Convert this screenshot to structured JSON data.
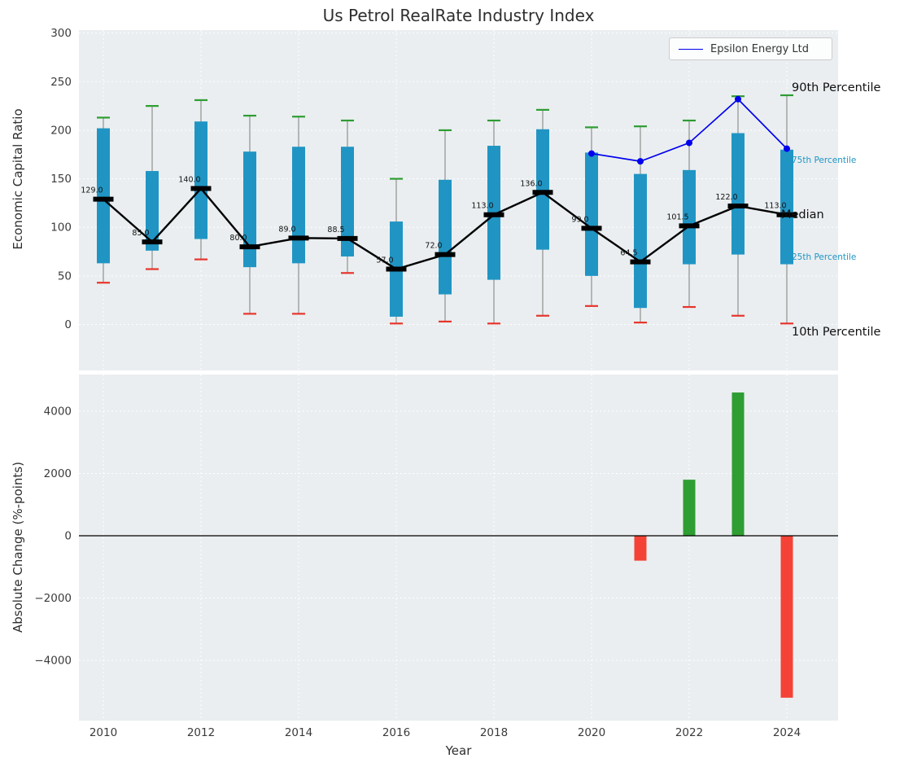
{
  "colors": {
    "plot_bg": "#eaeef0",
    "grid": "#ffffff",
    "box": "#2095c4",
    "whisker": "#9e9e9e",
    "cap_top": "#2e9d32",
    "cap_bottom": "#e8352c",
    "median": "#000000",
    "epsilon": "#0000ee",
    "bar_positive": "#2e9d32",
    "bar_negative": "#f44336",
    "annotation_blue": "#2095c4"
  },
  "chart_data": [
    {
      "type": "boxplot-percentile-band",
      "title": "Us Petrol RealRate Industry Index",
      "ylabel": "Economic Capital Ratio",
      "yticks": [
        0,
        50,
        100,
        150,
        200,
        250,
        300
      ],
      "ylim": [
        -48,
        303
      ],
      "grid": true,
      "years": [
        2010,
        2011,
        2012,
        2013,
        2014,
        2015,
        2016,
        2017,
        2018,
        2019,
        2020,
        2021,
        2022,
        2023,
        2024
      ],
      "percentiles": {
        "p10": [
          43,
          57,
          67,
          11,
          11,
          53,
          1,
          3,
          1,
          9,
          19,
          2,
          18,
          9,
          1
        ],
        "p25": [
          63,
          76,
          88,
          59,
          63,
          70,
          8,
          31,
          46,
          77,
          50,
          17,
          62,
          72,
          62
        ],
        "median": [
          129.0,
          85.0,
          140.0,
          80.0,
          89.0,
          88.5,
          57.0,
          72.0,
          113.0,
          136.0,
          99.0,
          64.5,
          101.5,
          122.0,
          113.0
        ],
        "p75": [
          202,
          158,
          209,
          178,
          183,
          183,
          106,
          149,
          184,
          201,
          177,
          155,
          159,
          197,
          180
        ],
        "p90": [
          213,
          225,
          231,
          215,
          214,
          210,
          150,
          200,
          210,
          221,
          203,
          204,
          210,
          235,
          236
        ]
      },
      "series": [
        {
          "name": "Epsilon Energy Ltd",
          "color": "#0000ee",
          "x": [
            2020,
            2021,
            2022,
            2023,
            2024
          ],
          "values": [
            176,
            168,
            187,
            232,
            181
          ]
        }
      ],
      "annotations": [
        "90th Percentile",
        "75th Percentile",
        "Median",
        "25th Percentile",
        "10th Percentile"
      ],
      "legend_position": "upper right"
    },
    {
      "type": "bar",
      "ylabel": "Absolute Change (%-points)",
      "xlabel": "Year",
      "yticks": [
        -4000,
        -2000,
        0,
        2000,
        4000
      ],
      "xticks": [
        2010,
        2012,
        2014,
        2016,
        2018,
        2020,
        2022,
        2024
      ],
      "grid": true,
      "bars": [
        {
          "year": 2021,
          "value": -800
        },
        {
          "year": 2022,
          "value": 1800
        },
        {
          "year": 2023,
          "value": 4600
        },
        {
          "year": 2024,
          "value": -5200
        }
      ]
    }
  ]
}
